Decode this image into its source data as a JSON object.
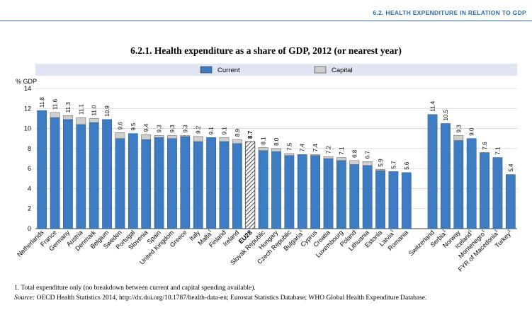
{
  "header": {
    "section": "6.2. HEALTH EXPENDITURE IN RELATION TO GDP"
  },
  "chart_data": {
    "type": "bar",
    "title": "6.2.1. Health expenditure as a share of GDP, 2012 (or nearest year)",
    "ylabel": "% GDP",
    "ylim": [
      0,
      14
    ],
    "yticks": [
      0,
      2,
      4,
      6,
      8,
      10,
      12,
      14
    ],
    "grid": true,
    "legend": {
      "position": "top",
      "entries": [
        "Current",
        "Capital"
      ]
    },
    "colors": {
      "current": "#3d7cc2",
      "capital": "#cfcfcf",
      "eu_hatch": "#333333",
      "legend_band": "#dfe6f1"
    },
    "categories": [
      "Netherlands",
      "France",
      "Germany",
      "Austria",
      "Denmark",
      "Belgium",
      "Sweden",
      "Portugal",
      "Slovenia",
      "Spain",
      "United Kingdom",
      "Greece",
      "Italy",
      "Malta",
      "Finland",
      "Ireland",
      "EU28",
      "Slovak Republic",
      "Hungary",
      "Czech Republic",
      "Bulgaria",
      "Cyprus",
      "Croatia",
      "Luxembourg",
      "Poland",
      "Lithuania",
      "Estonia",
      "Latvia",
      "Romania",
      "",
      "Switzerland",
      "Serbia",
      "Norway",
      "Iceland",
      "Montenegro",
      "FYR of Macedonia",
      "Turkey"
    ],
    "footnote_marks": [
      "",
      "",
      "",
      "",
      "",
      "",
      "",
      "",
      "",
      "",
      "",
      "",
      "",
      "1",
      "",
      "",
      "",
      "",
      "",
      "",
      "1",
      "",
      "",
      "",
      "",
      "",
      "",
      "1",
      "",
      "",
      "",
      "1",
      "",
      "1",
      "1",
      "1",
      "1"
    ],
    "series": [
      {
        "name": "Current",
        "values": [
          11.8,
          11.1,
          10.9,
          10.4,
          10.6,
          10.9,
          9.0,
          9.5,
          8.9,
          9.1,
          9.0,
          9.2,
          8.7,
          9.1,
          8.7,
          8.5,
          null,
          7.8,
          7.7,
          7.3,
          7.4,
          7.3,
          7.0,
          6.8,
          6.4,
          6.3,
          5.8,
          5.7,
          5.6,
          null,
          11.4,
          10.5,
          8.8,
          9.0,
          7.6,
          7.1,
          5.4
        ]
      },
      {
        "name": "Capital",
        "values": [
          0,
          0.5,
          0.4,
          0.7,
          0.4,
          0,
          0.6,
          0,
          0.5,
          0.2,
          0.3,
          0.1,
          0.5,
          0,
          0.4,
          0.4,
          null,
          0.3,
          0.3,
          0.2,
          0,
          0.1,
          0.2,
          0.3,
          0.4,
          0.4,
          0.1,
          0,
          0,
          null,
          0,
          0,
          0.5,
          0,
          0,
          0,
          0
        ]
      }
    ],
    "totals_labels": [
      "11.8",
      "11.6",
      "11.3",
      "11.1",
      "11.0",
      "10.9",
      "9.6",
      "9.5",
      "9.4",
      "9.3",
      "9.3",
      "9.3",
      "9.2",
      "9.1",
      "9.1",
      "8.9",
      "8.7",
      "8.1",
      "8.0",
      "7.5",
      "7.4",
      "7.4",
      "7.2",
      "7.1",
      "6.8",
      "6.7",
      "5.9",
      "5.7",
      "5.6",
      "",
      "11.4",
      "10.5",
      "9.3",
      "9.0",
      "7.6",
      "7.1",
      "5.4"
    ],
    "eu28": {
      "category": "EU28",
      "value": 8.7
    }
  },
  "footnotes": {
    "note1": "1. Total expenditure only (no breakdown between current and capital spending available).",
    "source_label": "Source:",
    "source_text": "OECD Health Statistics 2014, http://dx.doi.org/10.1787/health-data-en; Eurostat Statistics Database; WHO Global Health Expenditure Database."
  }
}
